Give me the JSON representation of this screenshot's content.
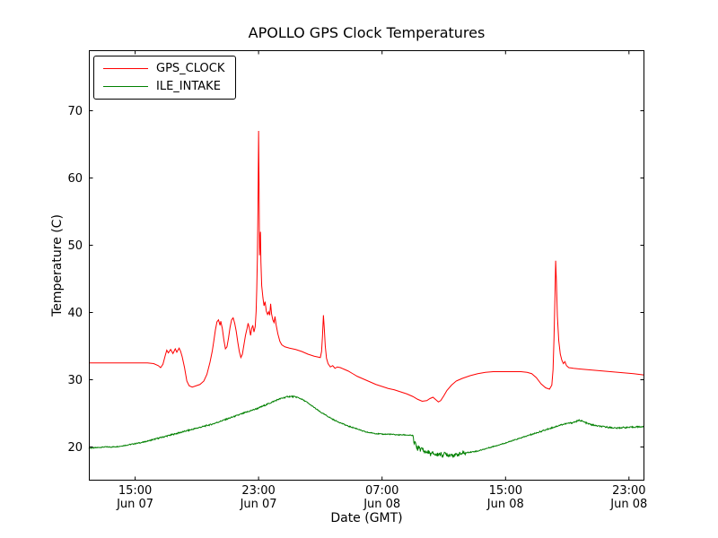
{
  "chart_data": {
    "type": "line",
    "title": "APOLLO GPS Clock Temperatures",
    "xlabel": "Date (GMT)",
    "ylabel": "Temperature (C)",
    "x_origin": "Jun 07 12:00 GMT, x measured in hours",
    "xlim": [
      0,
      36
    ],
    "ylim": [
      15,
      79
    ],
    "grid": false,
    "legend_position": "upper left",
    "yticks": [
      20,
      30,
      40,
      50,
      60,
      70
    ],
    "xticks": [
      {
        "t": 3,
        "time": "15:00",
        "date": "Jun 07"
      },
      {
        "t": 11,
        "time": "23:00",
        "date": "Jun 07"
      },
      {
        "t": 19,
        "time": "07:00",
        "date": "Jun 08"
      },
      {
        "t": 27,
        "time": "15:00",
        "date": "Jun 08"
      },
      {
        "t": 35,
        "time": "23:00",
        "date": "Jun 08"
      }
    ],
    "series": [
      {
        "name": "GPS_CLOCK",
        "color": "#ff0000",
        "points": [
          [
            0,
            32.5
          ],
          [
            0.8,
            32.5
          ],
          [
            1.6,
            32.5
          ],
          [
            2.4,
            32.5
          ],
          [
            3.2,
            32.5
          ],
          [
            3.8,
            32.5
          ],
          [
            4.2,
            32.4
          ],
          [
            4.5,
            32.1
          ],
          [
            4.65,
            31.8
          ],
          [
            4.8,
            32.3
          ],
          [
            4.95,
            33.6
          ],
          [
            5.05,
            34.4
          ],
          [
            5.15,
            34.0
          ],
          [
            5.3,
            34.5
          ],
          [
            5.45,
            33.9
          ],
          [
            5.6,
            34.6
          ],
          [
            5.7,
            34.1
          ],
          [
            5.85,
            34.7
          ],
          [
            5.95,
            34.2
          ],
          [
            6.05,
            33.4
          ],
          [
            6.2,
            31.8
          ],
          [
            6.35,
            29.8
          ],
          [
            6.5,
            29.1
          ],
          [
            6.7,
            28.9
          ],
          [
            6.95,
            29.1
          ],
          [
            7.2,
            29.3
          ],
          [
            7.45,
            29.8
          ],
          [
            7.65,
            30.8
          ],
          [
            7.85,
            32.6
          ],
          [
            8.0,
            34.3
          ],
          [
            8.1,
            35.8
          ],
          [
            8.2,
            37.4
          ],
          [
            8.3,
            38.6
          ],
          [
            8.4,
            38.9
          ],
          [
            8.5,
            38.1
          ],
          [
            8.55,
            38.7
          ],
          [
            8.65,
            37.6
          ],
          [
            8.75,
            35.9
          ],
          [
            8.85,
            34.6
          ],
          [
            8.95,
            34.9
          ],
          [
            9.05,
            36.2
          ],
          [
            9.15,
            37.8
          ],
          [
            9.25,
            38.9
          ],
          [
            9.35,
            39.2
          ],
          [
            9.45,
            38.4
          ],
          [
            9.55,
            37.2
          ],
          [
            9.65,
            35.6
          ],
          [
            9.75,
            34.2
          ],
          [
            9.85,
            33.3
          ],
          [
            9.95,
            33.8
          ],
          [
            10.05,
            35.2
          ],
          [
            10.15,
            36.6
          ],
          [
            10.25,
            37.6
          ],
          [
            10.32,
            38.4
          ],
          [
            10.4,
            37.7
          ],
          [
            10.48,
            36.6
          ],
          [
            10.55,
            37.6
          ],
          [
            10.62,
            38.1
          ],
          [
            10.7,
            37.1
          ],
          [
            10.78,
            37.9
          ],
          [
            10.84,
            40.2
          ],
          [
            10.88,
            43.5
          ],
          [
            10.92,
            48.0
          ],
          [
            10.96,
            56.0
          ],
          [
            11.0,
            67.0
          ],
          [
            11.03,
            59.0
          ],
          [
            11.06,
            48.5
          ],
          [
            11.09,
            50.5
          ],
          [
            11.12,
            52.0
          ],
          [
            11.15,
            47.5
          ],
          [
            11.2,
            44.0
          ],
          [
            11.28,
            42.2
          ],
          [
            11.35,
            41.0
          ],
          [
            11.42,
            41.6
          ],
          [
            11.5,
            40.2
          ],
          [
            11.58,
            39.7
          ],
          [
            11.65,
            40.1
          ],
          [
            11.72,
            39.6
          ],
          [
            11.78,
            41.3
          ],
          [
            11.84,
            39.8
          ],
          [
            11.92,
            38.9
          ],
          [
            12.0,
            38.5
          ],
          [
            12.06,
            39.4
          ],
          [
            12.14,
            38.1
          ],
          [
            12.25,
            36.8
          ],
          [
            12.38,
            35.7
          ],
          [
            12.5,
            35.2
          ],
          [
            12.7,
            34.9
          ],
          [
            13.0,
            34.7
          ],
          [
            13.4,
            34.5
          ],
          [
            13.8,
            34.2
          ],
          [
            14.2,
            33.8
          ],
          [
            14.6,
            33.5
          ],
          [
            15.0,
            33.3
          ],
          [
            15.08,
            34.2
          ],
          [
            15.14,
            36.5
          ],
          [
            15.2,
            39.6
          ],
          [
            15.26,
            37.5
          ],
          [
            15.32,
            35.0
          ],
          [
            15.4,
            33.2
          ],
          [
            15.5,
            32.4
          ],
          [
            15.65,
            31.9
          ],
          [
            15.8,
            32.1
          ],
          [
            15.95,
            31.7
          ],
          [
            16.1,
            31.9
          ],
          [
            16.3,
            31.8
          ],
          [
            16.5,
            31.6
          ],
          [
            16.8,
            31.3
          ],
          [
            17.1,
            30.9
          ],
          [
            17.4,
            30.5
          ],
          [
            17.8,
            30.1
          ],
          [
            18.2,
            29.7
          ],
          [
            18.6,
            29.3
          ],
          [
            19.0,
            29.0
          ],
          [
            19.4,
            28.7
          ],
          [
            19.8,
            28.5
          ],
          [
            20.2,
            28.2
          ],
          [
            20.6,
            27.9
          ],
          [
            21.0,
            27.5
          ],
          [
            21.3,
            27.1
          ],
          [
            21.6,
            26.8
          ],
          [
            21.9,
            26.9
          ],
          [
            22.1,
            27.2
          ],
          [
            22.3,
            27.4
          ],
          [
            22.5,
            27.0
          ],
          [
            22.65,
            26.7
          ],
          [
            22.8,
            26.9
          ],
          [
            23.0,
            27.6
          ],
          [
            23.2,
            28.4
          ],
          [
            23.5,
            29.2
          ],
          [
            23.8,
            29.8
          ],
          [
            24.2,
            30.2
          ],
          [
            24.7,
            30.6
          ],
          [
            25.2,
            30.9
          ],
          [
            25.7,
            31.1
          ],
          [
            26.2,
            31.2
          ],
          [
            26.8,
            31.2
          ],
          [
            27.4,
            31.2
          ],
          [
            28.0,
            31.2
          ],
          [
            28.4,
            31.1
          ],
          [
            28.7,
            30.9
          ],
          [
            29.0,
            30.3
          ],
          [
            29.3,
            29.4
          ],
          [
            29.6,
            28.8
          ],
          [
            29.85,
            28.6
          ],
          [
            30.0,
            29.2
          ],
          [
            30.08,
            31.5
          ],
          [
            30.14,
            36.0
          ],
          [
            30.2,
            42.0
          ],
          [
            30.25,
            47.7
          ],
          [
            30.3,
            44.5
          ],
          [
            30.36,
            39.5
          ],
          [
            30.45,
            35.8
          ],
          [
            30.55,
            33.8
          ],
          [
            30.65,
            32.9
          ],
          [
            30.75,
            32.4
          ],
          [
            30.85,
            32.7
          ],
          [
            30.95,
            32.1
          ],
          [
            31.1,
            31.8
          ],
          [
            31.4,
            31.7
          ],
          [
            31.8,
            31.6
          ],
          [
            32.3,
            31.5
          ],
          [
            32.8,
            31.4
          ],
          [
            33.3,
            31.3
          ],
          [
            33.8,
            31.2
          ],
          [
            34.3,
            31.1
          ],
          [
            34.8,
            31.0
          ],
          [
            35.3,
            30.9
          ],
          [
            36.0,
            30.7
          ]
        ]
      },
      {
        "name": "ILE_INTAKE",
        "color": "#008000",
        "noise": {
          "base": 0.07,
          "ranges": [
            [
              4.0,
              13.5,
              0.1
            ],
            [
              21.02,
              24.4,
              0.3
            ],
            [
              28.5,
              36,
              0.1
            ]
          ]
        },
        "points": [
          [
            0,
            19.8
          ],
          [
            0.5,
            19.9
          ],
          [
            1.0,
            20.0
          ],
          [
            1.5,
            20.0
          ],
          [
            2.0,
            20.1
          ],
          [
            2.5,
            20.3
          ],
          [
            3.0,
            20.5
          ],
          [
            3.5,
            20.7
          ],
          [
            4.0,
            21.0
          ],
          [
            4.5,
            21.3
          ],
          [
            5.0,
            21.6
          ],
          [
            5.5,
            21.9
          ],
          [
            6.0,
            22.2
          ],
          [
            6.5,
            22.5
          ],
          [
            7.0,
            22.8
          ],
          [
            7.5,
            23.1
          ],
          [
            8.0,
            23.4
          ],
          [
            8.5,
            23.8
          ],
          [
            9.0,
            24.2
          ],
          [
            9.5,
            24.6
          ],
          [
            10.0,
            25.0
          ],
          [
            10.5,
            25.4
          ],
          [
            11.0,
            25.8
          ],
          [
            11.5,
            26.3
          ],
          [
            12.0,
            26.8
          ],
          [
            12.3,
            27.1
          ],
          [
            12.6,
            27.3
          ],
          [
            12.9,
            27.5
          ],
          [
            13.2,
            27.5
          ],
          [
            13.5,
            27.4
          ],
          [
            13.8,
            27.1
          ],
          [
            14.1,
            26.7
          ],
          [
            14.4,
            26.2
          ],
          [
            14.7,
            25.7
          ],
          [
            15.0,
            25.2
          ],
          [
            15.3,
            24.8
          ],
          [
            15.6,
            24.4
          ],
          [
            15.9,
            24.0
          ],
          [
            16.2,
            23.7
          ],
          [
            16.5,
            23.4
          ],
          [
            16.8,
            23.1
          ],
          [
            17.1,
            22.9
          ],
          [
            17.4,
            22.7
          ],
          [
            17.7,
            22.4
          ],
          [
            18.0,
            22.2
          ],
          [
            18.3,
            22.1
          ],
          [
            18.6,
            22.0
          ],
          [
            19.0,
            21.9
          ],
          [
            19.5,
            21.9
          ],
          [
            20.0,
            21.8
          ],
          [
            20.5,
            21.8
          ],
          [
            21.0,
            21.7
          ],
          [
            21.05,
            20.9
          ],
          [
            21.1,
            20.2
          ],
          [
            21.15,
            21.0
          ],
          [
            21.2,
            20.0
          ],
          [
            21.3,
            19.7
          ],
          [
            21.4,
            20.1
          ],
          [
            21.5,
            19.5
          ],
          [
            21.6,
            19.8
          ],
          [
            21.7,
            19.4
          ],
          [
            21.85,
            19.2
          ],
          [
            22.0,
            19.3
          ],
          [
            22.15,
            18.9
          ],
          [
            22.3,
            19.1
          ],
          [
            22.5,
            18.8
          ],
          [
            22.7,
            19.0
          ],
          [
            22.9,
            18.8
          ],
          [
            23.1,
            19.0
          ],
          [
            23.3,
            18.8
          ],
          [
            23.5,
            18.9
          ],
          [
            23.7,
            18.7
          ],
          [
            23.9,
            18.9
          ],
          [
            24.1,
            19.0
          ],
          [
            24.35,
            19.1
          ],
          [
            24.6,
            19.2
          ],
          [
            24.9,
            19.3
          ],
          [
            25.2,
            19.4
          ],
          [
            25.5,
            19.6
          ],
          [
            25.8,
            19.8
          ],
          [
            26.1,
            20.0
          ],
          [
            26.4,
            20.2
          ],
          [
            26.7,
            20.4
          ],
          [
            27.0,
            20.6
          ],
          [
            27.4,
            20.9
          ],
          [
            27.8,
            21.2
          ],
          [
            28.2,
            21.5
          ],
          [
            28.6,
            21.8
          ],
          [
            29.0,
            22.1
          ],
          [
            29.4,
            22.4
          ],
          [
            29.8,
            22.7
          ],
          [
            30.2,
            23.0
          ],
          [
            30.6,
            23.3
          ],
          [
            31.0,
            23.5
          ],
          [
            31.3,
            23.6
          ],
          [
            31.6,
            23.8
          ],
          [
            31.8,
            24.0
          ],
          [
            32.0,
            23.8
          ],
          [
            32.3,
            23.5
          ],
          [
            32.6,
            23.3
          ],
          [
            33.0,
            23.1
          ],
          [
            33.4,
            23.0
          ],
          [
            33.8,
            22.9
          ],
          [
            34.2,
            22.8
          ],
          [
            34.6,
            22.9
          ],
          [
            35.0,
            22.9
          ],
          [
            35.5,
            23.0
          ],
          [
            36.0,
            23.0
          ]
        ]
      }
    ]
  }
}
